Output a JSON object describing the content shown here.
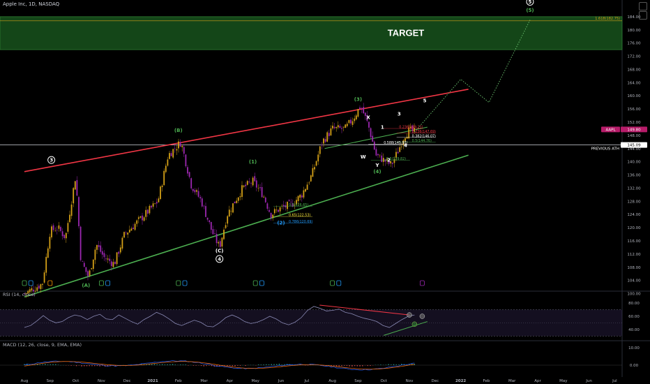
{
  "header": {
    "symbol_title": "Apple Inc, 1D, NASDAQ"
  },
  "colors": {
    "background": "#000000",
    "up": "#d4a017",
    "down": "#9c27b0",
    "resistance": "#f23645",
    "support": "#4caf50",
    "target_zone": "#1b5e20",
    "projection": "#66bb6a",
    "rsi": "#8a8ab5"
  },
  "chart_data": {
    "type": "candlestick",
    "x_axis": {
      "ticks": [
        "Aug",
        "Sep",
        "Oct",
        "Nov",
        "Dec",
        "2021",
        "Feb",
        "Mar",
        "Apr",
        "May",
        "Jun",
        "Jul",
        "Aug",
        "Sep",
        "Oct",
        "Nov",
        "Dec",
        "2022",
        "Feb",
        "Mar",
        "Apr",
        "May",
        "Jun",
        "Jul"
      ]
    },
    "y_axis": {
      "ticks": [
        "184.00",
        "180.00",
        "176.00",
        "172.00",
        "168.00",
        "164.00",
        "160.00",
        "156.00",
        "152.00",
        "148.00",
        "144.00",
        "140.00",
        "136.00",
        "132.00",
        "128.00",
        "124.00",
        "120.00",
        "116.00",
        "112.00",
        "108.00",
        "104.00",
        "100.00"
      ],
      "ylim": [
        98,
        188
      ]
    },
    "price_path": [
      [
        0,
        100
      ],
      [
        0.7,
        103
      ],
      [
        1.0,
        119
      ],
      [
        1.3,
        120
      ],
      [
        1.6,
        117
      ],
      [
        2.0,
        136
      ],
      [
        2.2,
        110
      ],
      [
        2.5,
        105
      ],
      [
        2.8,
        115
      ],
      [
        3.1,
        111
      ],
      [
        3.5,
        109
      ],
      [
        3.9,
        118
      ],
      [
        4.3,
        121
      ],
      [
        4.7,
        124
      ],
      [
        5.2,
        128
      ],
      [
        5.6,
        142
      ],
      [
        6.1,
        146
      ],
      [
        6.5,
        133
      ],
      [
        6.9,
        128
      ],
      [
        7.3,
        119
      ],
      [
        7.6,
        114
      ],
      [
        7.9,
        124
      ],
      [
        8.5,
        132
      ],
      [
        8.9,
        134
      ],
      [
        9.3,
        130
      ],
      [
        9.6,
        124
      ],
      [
        10.0,
        126
      ],
      [
        10.4,
        127
      ],
      [
        10.8,
        130
      ],
      [
        11.2,
        136
      ],
      [
        11.6,
        146
      ],
      [
        12.0,
        150
      ],
      [
        12.5,
        150
      ],
      [
        12.8,
        153
      ],
      [
        13.1,
        157
      ],
      [
        13.4,
        151
      ],
      [
        13.7,
        142
      ],
      [
        14.1,
        140
      ],
      [
        14.3,
        139
      ],
      [
        14.6,
        144
      ],
      [
        14.8,
        148
      ],
      [
        15.0,
        149.5
      ],
      [
        15.2,
        149
      ]
    ],
    "last_price": "149.80",
    "symbol_tag": "AAPL",
    "previous_ath": {
      "value": "145.09",
      "label": "PREVIOUS ATH"
    },
    "target_zone": {
      "from": 174,
      "to": 184,
      "label": "TARGET"
    },
    "target_fib": "1.618(182.75)",
    "trendlines": {
      "resistance": [
        [
          0,
          137
        ],
        [
          17.3,
          162
        ]
      ],
      "support": [
        [
          0,
          99
        ],
        [
          17.3,
          142
        ]
      ]
    },
    "inner_channel": [
      [
        11.7,
        144
      ],
      [
        15.7,
        150.5
      ]
    ],
    "projection": [
      [
        15.2,
        149
      ],
      [
        17.0,
        165
      ],
      [
        18.1,
        158
      ],
      [
        19.7,
        183
      ]
    ],
    "elliott_labels": [
      {
        "text": "3",
        "x": 1.05,
        "y": 140,
        "color": "#ffffff",
        "circle": true
      },
      {
        "text": "(A)",
        "x": 2.4,
        "y": 102,
        "color": "#4caf50"
      },
      {
        "text": "(B)",
        "x": 6.0,
        "y": 149,
        "color": "#4caf50"
      },
      {
        "text": "(C)",
        "x": 7.6,
        "y": 112.5,
        "color": "#ffffff"
      },
      {
        "text": "4",
        "x": 7.6,
        "y": 110,
        "color": "#ffffff",
        "circle": true
      },
      {
        "text": "(1)",
        "x": 8.9,
        "y": 139.5,
        "color": "#4caf50"
      },
      {
        "text": "(2)",
        "x": 10.0,
        "y": 121,
        "color": "#2196f3"
      },
      {
        "text": "(3)",
        "x": 13.0,
        "y": 158.5,
        "color": "#4caf50"
      },
      {
        "text": "X",
        "x": 13.4,
        "y": 153,
        "color": "#ffffff"
      },
      {
        "text": "W",
        "x": 13.2,
        "y": 141,
        "color": "#ffffff"
      },
      {
        "text": "Y",
        "x": 13.75,
        "y": 138.5,
        "color": "#ffffff"
      },
      {
        "text": "(4)",
        "x": 13.75,
        "y": 136.5,
        "color": "#4caf50"
      },
      {
        "text": "1",
        "x": 13.95,
        "y": 150,
        "color": "#ffffff"
      },
      {
        "text": "2",
        "x": 14.2,
        "y": 140,
        "color": "#ffffff"
      },
      {
        "text": "3",
        "x": 14.6,
        "y": 154,
        "color": "#ffffff"
      },
      {
        "text": "4",
        "x": 14.85,
        "y": 144.5,
        "color": "#ffffff"
      },
      {
        "text": "5",
        "x": 15.6,
        "y": 158,
        "color": "#ffffff"
      },
      {
        "text": "5",
        "x": 19.7,
        "y": 188,
        "color": "#ffffff",
        "circle": true
      },
      {
        "text": "(5)",
        "x": 19.7,
        "y": 185.5,
        "color": "#4caf50"
      }
    ],
    "fib_levels": [
      {
        "text": "0.5(126.65)",
        "x": 10.3,
        "y": 126.6,
        "color": "#4caf50"
      },
      {
        "text": "0.65(122.53)",
        "x": 10.3,
        "y": 123.5,
        "color": "#ffeb3b"
      },
      {
        "text": "0.786(120.69)",
        "x": 10.3,
        "y": 121.5,
        "color": "#2196f3"
      },
      {
        "text": "0.236(149.11)",
        "x": 14.6,
        "y": 150.2,
        "color": "#f23645"
      },
      {
        "text": "0.236(147.69)",
        "x": 15.1,
        "y": 148.8,
        "color": "#f23645"
      },
      {
        "text": "0.382(146.07)",
        "x": 15.1,
        "y": 147.5,
        "color": "#ffffff"
      },
      {
        "text": "0.5(144.76)",
        "x": 15.1,
        "y": 146.1,
        "color": "#4caf50"
      },
      {
        "text": "0.588(145.97)",
        "x": 14.0,
        "y": 145.4,
        "color": "#ffffff"
      },
      {
        "text": "0.5(139.82)",
        "x": 14.1,
        "y": 140.6,
        "color": "#4caf50"
      }
    ],
    "rsi": {
      "title": "RSI (14, close)",
      "ticks": [
        "80.00",
        "60.00",
        "40.00"
      ],
      "ylim": [
        25,
        95
      ],
      "upper_band": 70,
      "lower_band": 30,
      "values": [
        43,
        46,
        53,
        61,
        54,
        50,
        52,
        58,
        62,
        60,
        55,
        60,
        63,
        56,
        55,
        62,
        57,
        52,
        48,
        55,
        60,
        66,
        62,
        56,
        49,
        46,
        50,
        54,
        51,
        45,
        44,
        50,
        58,
        62,
        58,
        52,
        49,
        51,
        55,
        60,
        56,
        50,
        47,
        51,
        58,
        69,
        75,
        72,
        68,
        69,
        71,
        66,
        64,
        60,
        57,
        55,
        52,
        46,
        43,
        49,
        55,
        60,
        62
      ]
    },
    "macd": {
      "title": "MACD (12, 26, close, 9, EMA, EMA)",
      "ticks": [
        "10.00",
        "0.00"
      ],
      "ylim": [
        -6,
        14
      ]
    }
  }
}
